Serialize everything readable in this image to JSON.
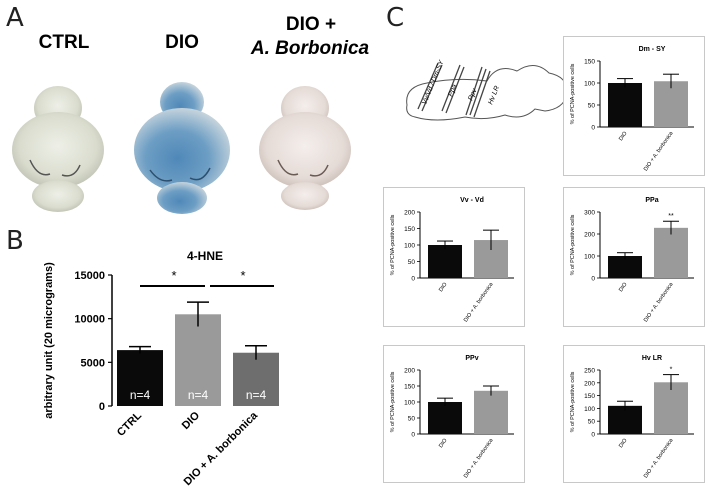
{
  "panels": {
    "a": {
      "letter": "A",
      "labels": [
        "CTRL",
        "DIO",
        "DIO +",
        "A. Borbonica"
      ]
    },
    "b": {
      "letter": "B"
    },
    "c": {
      "letter": "C",
      "diagram_labels": [
        "Vv/Vd / Dm-SY",
        "Ppa",
        "Ppv",
        "Hv LR"
      ]
    }
  },
  "colors": {
    "black_bar": "#0a0a0a",
    "gray_bar": "#9a9a9a",
    "mid_bar": "#6e6e6e"
  },
  "chart_data": [
    {
      "id": "hne",
      "type": "bar",
      "title": "4-HNE",
      "ylabel": "arbitrary unit (20 micrograms)",
      "ylim": [
        0,
        15000
      ],
      "yticks": [
        "0",
        "5000",
        "10000",
        "15000"
      ],
      "categories": [
        "CTRL",
        "DIO",
        "DIO + A. borbonica"
      ],
      "values": [
        6400,
        10500,
        6100
      ],
      "errors": [
        400,
        1400,
        800
      ],
      "bar_labels": [
        "n=4",
        "n=4",
        "n=4"
      ],
      "significance": [
        "*",
        "*"
      ]
    },
    {
      "id": "dm-sy",
      "type": "bar",
      "title": "Dm - SY",
      "ylabel": "% of PCNA-positive cells",
      "ylim": [
        0,
        150
      ],
      "yticks": [
        "0",
        "50",
        "100",
        "150"
      ],
      "categories": [
        "DIO",
        "DIO + A. borbonica"
      ],
      "values": [
        100,
        104
      ],
      "errors": [
        10,
        16
      ],
      "stars": [
        "",
        ""
      ]
    },
    {
      "id": "vv-vd",
      "type": "bar",
      "title": "Vv - Vd",
      "ylabel": "% of PCNA-positive cells",
      "ylim": [
        0,
        200
      ],
      "yticks": [
        "0",
        "50",
        "100",
        "150",
        "200"
      ],
      "categories": [
        "DIO",
        "DIO + A. borbonica"
      ],
      "values": [
        100,
        115
      ],
      "errors": [
        12,
        30
      ],
      "stars": [
        "",
        ""
      ]
    },
    {
      "id": "ppa",
      "type": "bar",
      "title": "PPa",
      "ylabel": "% of PCNA-positive cells",
      "ylim": [
        0,
        300
      ],
      "yticks": [
        "0",
        "100",
        "200",
        "300"
      ],
      "categories": [
        "DIO",
        "DIO + A. borbonica"
      ],
      "values": [
        100,
        228
      ],
      "errors": [
        15,
        30
      ],
      "stars": [
        "",
        "**"
      ]
    },
    {
      "id": "ppv",
      "type": "bar",
      "title": "PPv",
      "ylabel": "% of PCNA-positive cells",
      "ylim": [
        0,
        200
      ],
      "yticks": [
        "0",
        "50",
        "100",
        "150",
        "200"
      ],
      "categories": [
        "DIO",
        "DIO + A. borbonica"
      ],
      "values": [
        100,
        135
      ],
      "errors": [
        12,
        15
      ],
      "stars": [
        "",
        ""
      ]
    },
    {
      "id": "hv-lr",
      "type": "bar",
      "title": "Hv LR",
      "ylabel": "% of PCNA-positive cells",
      "ylim": [
        0,
        250
      ],
      "yticks": [
        "0",
        "50",
        "100",
        "150",
        "200",
        "250"
      ],
      "categories": [
        "DIO",
        "DIO + A. borbonica"
      ],
      "values": [
        110,
        202
      ],
      "errors": [
        18,
        30
      ],
      "stars": [
        "",
        "*"
      ]
    }
  ]
}
